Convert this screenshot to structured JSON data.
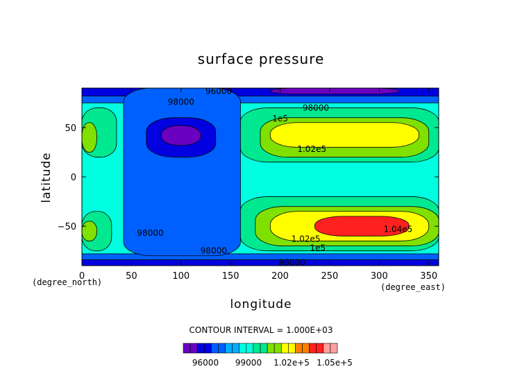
{
  "chart_data": {
    "type": "contour",
    "title": "surface pressure",
    "xlabel": "longitude",
    "ylabel": "latitude",
    "x_units": "(degree_east)",
    "y_units": "(degree_north)",
    "xlim": [
      0,
      360
    ],
    "ylim": [
      -90,
      90
    ],
    "x_ticks": [
      "0",
      "50",
      "100",
      "150",
      "200",
      "250",
      "300",
      "350"
    ],
    "y_ticks": [
      "50",
      "0",
      "−50"
    ],
    "x_tick_values": [
      0,
      50,
      100,
      150,
      200,
      250,
      300,
      350
    ],
    "y_tick_values": [
      50,
      0,
      -50
    ],
    "contour_interval_label": "CONTOUR INTERVAL = 1.000E+03",
    "contour_labels": [
      {
        "text": "98000",
        "lon": 100,
        "lat": 76
      },
      {
        "text": "96000",
        "lon": 138,
        "lat": 87
      },
      {
        "text": "98000",
        "lon": 236,
        "lat": 70
      },
      {
        "text": "1e5",
        "lon": 200,
        "lat": 59
      },
      {
        "text": "1.02e5",
        "lon": 232,
        "lat": 28
      },
      {
        "text": "98000",
        "lon": 69,
        "lat": -57
      },
      {
        "text": "1.02e5",
        "lon": 226,
        "lat": -63
      },
      {
        "text": "1e5",
        "lon": 238,
        "lat": -72
      },
      {
        "text": "98000",
        "lon": 133,
        "lat": -75
      },
      {
        "text": "96000",
        "lon": 212,
        "lat": -87
      },
      {
        "text": "1.04e5",
        "lon": 319,
        "lat": -53
      }
    ],
    "regions": [
      {
        "level": 99500,
        "lon_range": [
          0,
          360
        ],
        "lat_range": [
          -90,
          90
        ]
      },
      {
        "level": 97500,
        "lon_range": [
          0,
          360
        ],
        "lat_range": [
          75,
          90
        ]
      },
      {
        "level": 97500,
        "lon_range": [
          0,
          360
        ],
        "lat_range": [
          -90,
          -78
        ]
      },
      {
        "level": 96500,
        "lon_range": [
          0,
          360
        ],
        "lat_range": [
          82,
          90
        ]
      },
      {
        "level": 95500,
        "lon_range": [
          190,
          320
        ],
        "lat_range": [
          84,
          90
        ]
      },
      {
        "level": 96500,
        "lon_range": [
          0,
          360
        ],
        "lat_range": [
          -90,
          -84
        ]
      },
      {
        "level": 97500,
        "lon_range": [
          42,
          160
        ],
        "lat_range": [
          -80,
          90
        ]
      },
      {
        "level": 96500,
        "lon_range": [
          65,
          135
        ],
        "lat_range": [
          20,
          60
        ]
      },
      {
        "level": 95500,
        "lon_range": [
          80,
          120
        ],
        "lat_range": [
          32,
          52
        ]
      },
      {
        "level": 100500,
        "lon_range": [
          160,
          360
        ],
        "lat_range": [
          15,
          70
        ]
      },
      {
        "level": 101500,
        "lon_range": [
          180,
          350
        ],
        "lat_range": [
          20,
          60
        ]
      },
      {
        "level": 102500,
        "lon_range": [
          190,
          340
        ],
        "lat_range": [
          30,
          55
        ]
      },
      {
        "level": 100500,
        "lon_range": [
          160,
          360
        ],
        "lat_range": [
          -75,
          -20
        ]
      },
      {
        "level": 101500,
        "lon_range": [
          175,
          360
        ],
        "lat_range": [
          -70,
          -30
        ]
      },
      {
        "level": 102500,
        "lon_range": [
          190,
          350
        ],
        "lat_range": [
          -65,
          -35
        ]
      },
      {
        "level": 104500,
        "lon_range": [
          235,
          330
        ],
        "lat_range": [
          -60,
          -40
        ]
      },
      {
        "level": 100500,
        "lon_range": [
          0,
          35
        ],
        "lat_range": [
          20,
          70
        ]
      },
      {
        "level": 101500,
        "lon_range": [
          0,
          15
        ],
        "lat_range": [
          25,
          55
        ]
      },
      {
        "level": 100500,
        "lon_range": [
          0,
          30
        ],
        "lat_range": [
          -75,
          -35
        ]
      },
      {
        "level": 101500,
        "lon_range": [
          0,
          15
        ],
        "lat_range": [
          -65,
          -45
        ]
      }
    ],
    "colorbar": {
      "levels": [
        95500,
        96500,
        97500,
        98500,
        99500,
        100500,
        101500,
        102500,
        103500,
        104500
      ],
      "colors": [
        "#6a00c0",
        "#0000e0",
        "#0060ff",
        "#00b0ff",
        "#00ffe0",
        "#00e890",
        "#80e000",
        "#ffff00",
        "#ff8000",
        "#ff2020",
        "#ffa0a0"
      ],
      "labels": [
        "96000",
        "99000",
        "1.02e+5",
        "1.05e+5"
      ]
    },
    "grid": false,
    "legend": "bottom"
  }
}
